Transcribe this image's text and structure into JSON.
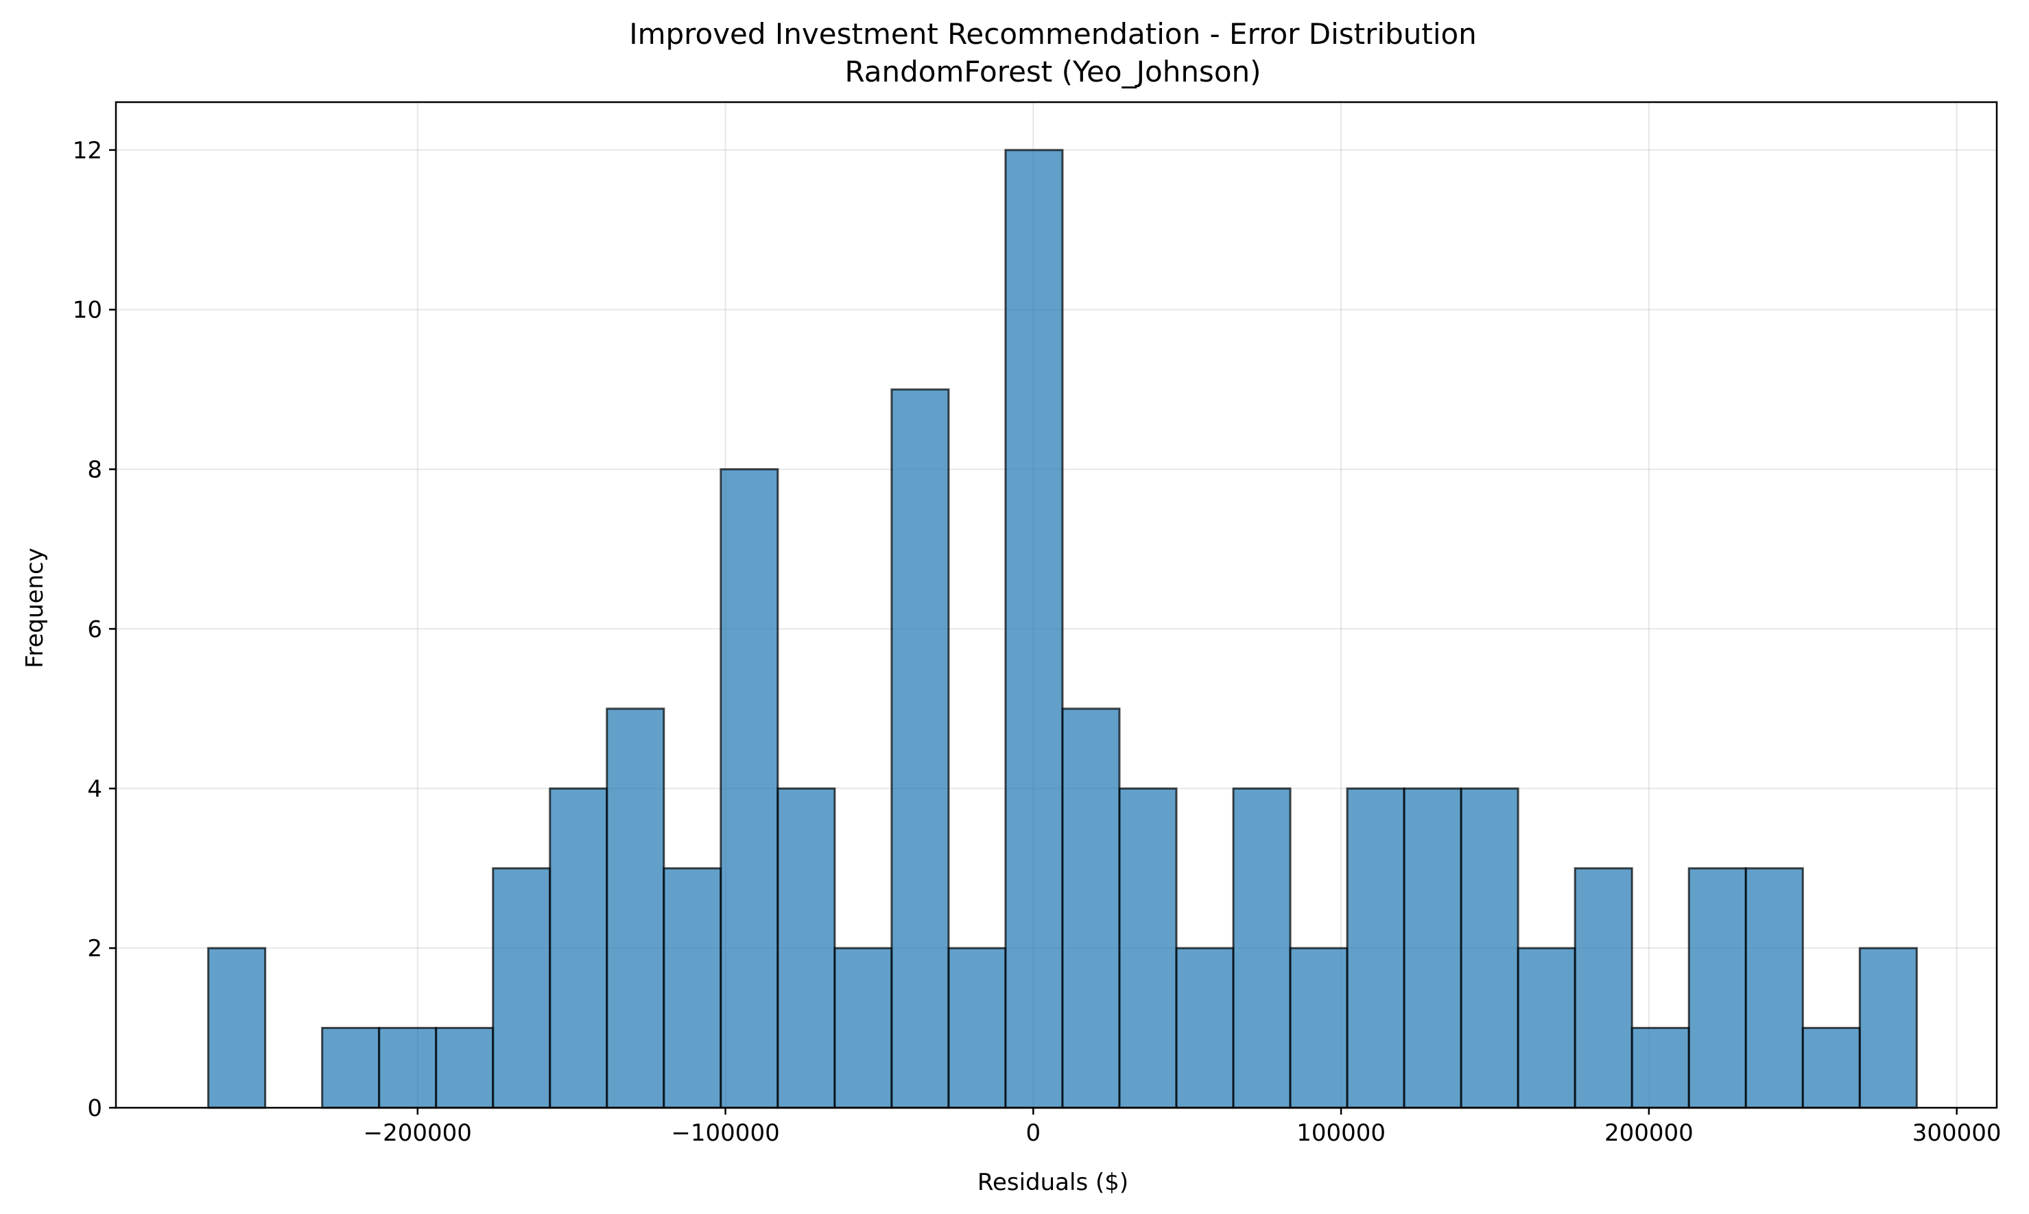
{
  "chart_data": {
    "type": "bar",
    "title": "Improved Investment Recommendation - Error Distribution",
    "subtitle": "RandomForest (Yeo_Johnson)",
    "xlabel": "Residuals ($)",
    "ylabel": "Frequency",
    "xlim": [
      -298000,
      313000
    ],
    "ylim": [
      0,
      12.6
    ],
    "grid": true,
    "x_ticks": [
      {
        "value": -200000,
        "label": "−200000"
      },
      {
        "value": -100000,
        "label": "−100000"
      },
      {
        "value": 0,
        "label": "0"
      },
      {
        "value": 100000,
        "label": "100000"
      },
      {
        "value": 200000,
        "label": "200000"
      },
      {
        "value": 300000,
        "label": "300000"
      }
    ],
    "y_ticks": [
      {
        "value": 0,
        "label": "0"
      },
      {
        "value": 2,
        "label": "2"
      },
      {
        "value": 4,
        "label": "4"
      },
      {
        "value": 6,
        "label": "6"
      },
      {
        "value": 8,
        "label": "8"
      },
      {
        "value": 10,
        "label": "10"
      },
      {
        "value": 12,
        "label": "12"
      }
    ],
    "bin_start": -268000,
    "bin_width": 18500,
    "values": [
      2,
      0,
      1,
      1,
      1,
      3,
      4,
      5,
      3,
      8,
      4,
      2,
      9,
      2,
      12,
      5,
      4,
      2,
      4,
      2,
      4,
      4,
      4,
      2,
      3,
      1,
      3,
      3,
      1,
      2
    ],
    "bar_color": "#1f77b4",
    "bar_alpha": 0.7,
    "edge_color": "#000000"
  }
}
